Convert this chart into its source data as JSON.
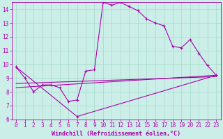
{
  "title": "",
  "xlabel": "Windchill (Refroidissement éolien,°C)",
  "ylabel": "",
  "xlim": [
    -0.5,
    23.5
  ],
  "ylim": [
    6,
    14.5
  ],
  "xticks": [
    0,
    1,
    2,
    3,
    4,
    5,
    6,
    7,
    8,
    9,
    10,
    11,
    12,
    13,
    14,
    15,
    16,
    17,
    18,
    19,
    20,
    21,
    22,
    23
  ],
  "yticks": [
    6,
    7,
    8,
    9,
    10,
    11,
    12,
    13,
    14
  ],
  "bg_color": "#cceee8",
  "grid_color": "#aaddcc",
  "line_color": "#aa00aa",
  "line1_x": [
    0,
    1,
    2,
    3,
    4,
    5,
    6,
    7,
    8,
    9,
    10,
    11,
    12,
    13,
    14,
    15,
    16,
    17,
    18,
    19,
    20,
    21,
    22,
    23
  ],
  "line1_y": [
    9.8,
    9.0,
    8.0,
    8.5,
    8.5,
    8.3,
    7.3,
    7.4,
    9.5,
    9.6,
    14.5,
    14.3,
    14.5,
    14.2,
    13.9,
    13.3,
    13.0,
    12.8,
    11.3,
    11.2,
    11.8,
    10.8,
    9.9,
    9.2
  ],
  "line2_x": [
    0,
    7,
    23
  ],
  "line2_y": [
    9.8,
    6.2,
    9.2
  ],
  "line3_x": [
    0,
    23
  ],
  "line3_y": [
    8.3,
    9.2
  ],
  "line4_x": [
    0,
    23
  ],
  "line4_y": [
    8.6,
    9.1
  ],
  "xlabel_fontsize": 6,
  "tick_fontsize": 5.5,
  "marker": "+"
}
